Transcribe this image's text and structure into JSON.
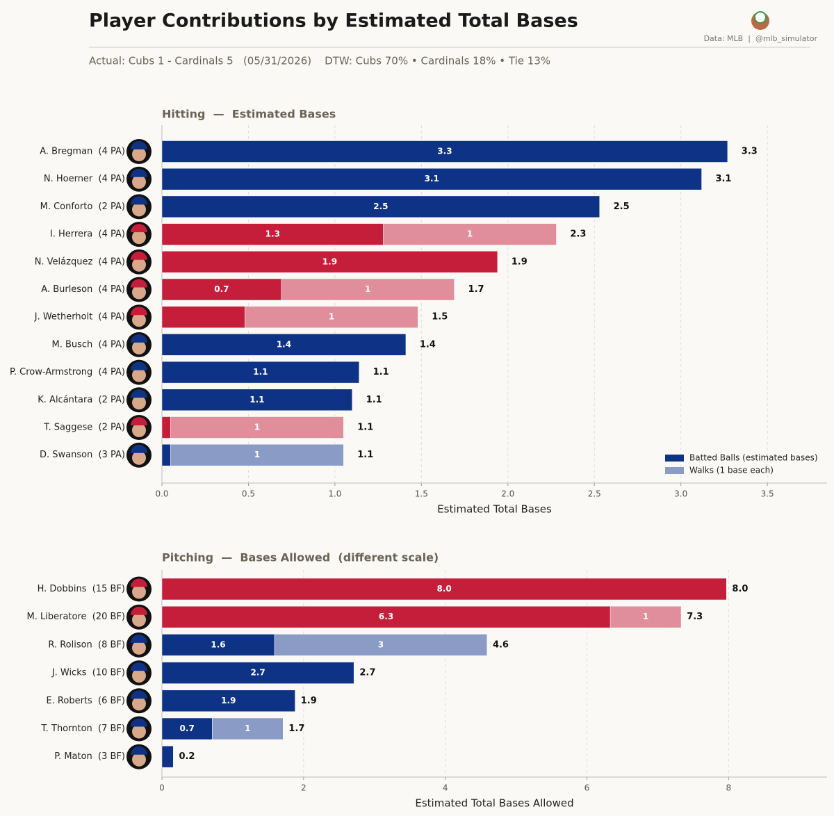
{
  "header": {
    "title": "Player Contributions by Estimated Total Bases",
    "subtitle": "Actual: Cubs 1 - Cardinals 5   (05/31/2026)    DTW: Cubs 70% • Cardinals 18% • Tie 13%",
    "source": "Data: MLB  |  @mlb_simulator"
  },
  "chart_data": [
    {
      "type": "stacked-barh",
      "title": "Hitting  —  Estimated Bases",
      "x_label": "Estimated Total Bases",
      "categories": [
        "A. Bregman  (4 PA)",
        "N. Hoerner  (4 PA)",
        "M. Conforto  (2 PA)",
        "I. Herrera  (4 PA)",
        "N. Velázquez  (4 PA)",
        "A. Burleson  (4 PA)",
        "J. Wetherholt  (4 PA)",
        "M. Busch  (4 PA)",
        "P. Crow-Armstrong  (4 PA)",
        "K. Alcántara  (2 PA)",
        "T. Saggese  (2 PA)",
        "D. Swanson  (3 PA)"
      ],
      "series": [
        {
          "name": "Batted Balls (estimated bases)",
          "color": "#0e3386",
          "values": [
            3.27,
            3.12,
            2.53,
            1.28,
            1.94,
            0.69,
            0.48,
            1.41,
            1.14,
            1.1,
            0.05,
            0.05
          ],
          "value_labels": [
            "3.3",
            "3.1",
            "2.5",
            "1.3",
            "1.9",
            "0.7",
            null,
            "1.4",
            "1.1",
            "1.1",
            null,
            null
          ],
          "bar_colors": [
            "#0e3386",
            "#0e3386",
            "#0e3386",
            "#c41e3a",
            "#c41e3a",
            "#c41e3a",
            "#c41e3a",
            "#0e3386",
            "#0e3386",
            "#0e3386",
            "#c41e3a",
            "#0e3386"
          ]
        },
        {
          "name": "Walks (1 base each)",
          "color": "#8a9bc6",
          "values": [
            0,
            0,
            0,
            1,
            0,
            1,
            1,
            0,
            0,
            0,
            1,
            1
          ],
          "bar_colors": [
            "#8a9bc6",
            "#8a9bc6",
            "#8a9bc6",
            "#e08e9b",
            "#e08e9b",
            "#e08e9b",
            "#e08e9b",
            "#8a9bc6",
            "#8a9bc6",
            "#8a9bc6",
            "#e08e9b",
            "#8a9bc6"
          ]
        }
      ],
      "totals": [
        3.3,
        3.1,
        2.5,
        2.3,
        1.9,
        1.7,
        1.5,
        1.4,
        1.1,
        1.1,
        1.1,
        1.1
      ],
      "xlim": [
        0,
        3.845
      ],
      "xticks": [
        {
          "value": 0,
          "label": "0.0"
        },
        0.5,
        {
          "value": 1,
          "label": "1.0"
        },
        1.5,
        {
          "value": 2,
          "label": "2.0"
        },
        2.5,
        {
          "value": 3,
          "label": "3.0"
        },
        3.5
      ],
      "grid": true,
      "legend": "lower right"
    },
    {
      "type": "stacked-barh",
      "title": "Pitching  —  Bases Allowed  (different scale)",
      "x_label": "Estimated Total Bases Allowed",
      "categories": [
        "H. Dobbins  (15 BF)",
        "M. Liberatore  (20 BF)",
        "R. Rolison  (8 BF)",
        "J. Wicks  (10 BF)",
        "E. Roberts  (6 BF)",
        "T. Thornton  (7 BF)",
        "P. Maton  (3 BF)"
      ],
      "series": [
        {
          "name": "Batted Balls (estimated bases)",
          "color": "#0e3386",
          "values": [
            7.97,
            6.33,
            1.59,
            2.71,
            1.88,
            0.71,
            0.16
          ],
          "value_labels": [
            "8.0",
            "6.3",
            "1.6",
            "2.7",
            "1.9",
            "0.7",
            null
          ],
          "bar_colors": [
            "#c41e3a",
            "#c41e3a",
            "#0e3386",
            "#0e3386",
            "#0e3386",
            "#0e3386",
            "#0e3386"
          ]
        },
        {
          "name": "Walks (1 base each)",
          "color": "#8a9bc6",
          "values": [
            0,
            1,
            3,
            0,
            0,
            1,
            0
          ],
          "bar_colors": [
            "#e08e9b",
            "#e08e9b",
            "#8a9bc6",
            "#8a9bc6",
            "#8a9bc6",
            "#8a9bc6",
            "#8a9bc6"
          ]
        }
      ],
      "totals": [
        {
          "value": 8,
          "label": "8.0"
        },
        7.3,
        4.6,
        2.7,
        1.9,
        1.7,
        0.2
      ],
      "xlim": [
        0,
        9.39
      ],
      "xticks": [
        0,
        2,
        4,
        6,
        8
      ],
      "grid": true
    }
  ]
}
